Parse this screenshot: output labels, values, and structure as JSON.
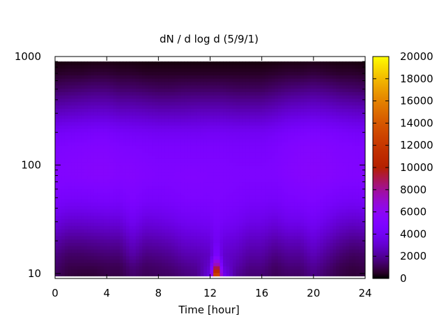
{
  "chart_data": {
    "type": "heatmap",
    "title": "dN / d log d (5/9/1)",
    "xlabel": "Time [hour]",
    "ylabel": "",
    "x_range": [
      0,
      24
    ],
    "x_ticks": [
      0,
      4,
      8,
      12,
      16,
      20,
      24
    ],
    "y_scale": "log",
    "y_range": [
      9,
      1000
    ],
    "y_ticks": [
      10,
      100,
      1000
    ],
    "data_y_range": [
      9.5,
      900
    ],
    "colorbar": {
      "range": [
        0,
        20000
      ],
      "ticks": [
        0,
        2000,
        4000,
        6000,
        8000,
        10000,
        12000,
        14000,
        16000,
        18000,
        20000
      ],
      "palette": "gnuplot (black-purple-blue-red-orange-yellow)"
    },
    "x_hours": [
      0,
      1,
      2,
      3,
      4,
      5,
      6,
      7,
      8,
      9,
      10,
      11,
      12,
      12.5,
      13,
      14,
      15,
      16,
      17,
      18,
      19,
      20,
      21,
      22,
      23,
      24
    ],
    "y_diameters": [
      10,
      12,
      15,
      20,
      30,
      50,
      80,
      100,
      150,
      200,
      300,
      500,
      700,
      900
    ],
    "values": [
      [
        1200,
        800,
        700,
        700,
        900,
        900,
        1400,
        1100,
        1200,
        1300,
        1600,
        1800,
        3500,
        15500,
        4000,
        2000,
        1500,
        1500,
        1100,
        1300,
        1300,
        1800,
        1300,
        900,
        700,
        800
      ],
      [
        1400,
        1000,
        1000,
        1000,
        1100,
        1100,
        1700,
        1300,
        1400,
        1600,
        1900,
        2100,
        3000,
        9000,
        3200,
        2400,
        1800,
        1800,
        1300,
        1600,
        1600,
        2100,
        1600,
        1100,
        900,
        1000
      ],
      [
        1700,
        1300,
        1300,
        1400,
        1500,
        1500,
        2300,
        1700,
        1800,
        2000,
        2400,
        2500,
        2800,
        5000,
        3000,
        2700,
        2200,
        2200,
        1700,
        2000,
        2000,
        2600,
        2000,
        1500,
        1200,
        1300
      ],
      [
        2300,
        1900,
        1900,
        2000,
        2100,
        2100,
        2900,
        2300,
        2400,
        2600,
        3000,
        3100,
        3300,
        4200,
        3400,
        3200,
        2700,
        2700,
        2300,
        2600,
        2600,
        3200,
        2600,
        2100,
        1800,
        1900
      ],
      [
        3400,
        3000,
        3000,
        3100,
        3200,
        3200,
        3900,
        3300,
        3400,
        3600,
        3900,
        4000,
        4100,
        4500,
        4200,
        4000,
        3600,
        3600,
        3300,
        3700,
        3700,
        4100,
        3600,
        3100,
        2900,
        3000
      ],
      [
        4600,
        4400,
        4400,
        4500,
        4600,
        4500,
        4900,
        4500,
        4500,
        4600,
        4800,
        4800,
        4800,
        4900,
        4800,
        4700,
        4500,
        4500,
        4400,
        4700,
        4800,
        5000,
        4700,
        4400,
        4300,
        4400
      ],
      [
        5200,
        5200,
        5300,
        5400,
        5400,
        5200,
        5300,
        5100,
        5000,
        5000,
        5100,
        5100,
        5000,
        5000,
        5000,
        4900,
        4900,
        4900,
        4900,
        5200,
        5400,
        5500,
        5400,
        5200,
        5100,
        5100
      ],
      [
        5100,
        5200,
        5300,
        5400,
        5400,
        5200,
        5200,
        5000,
        4900,
        4900,
        4900,
        4900,
        4900,
        4900,
        4900,
        4800,
        4800,
        4800,
        4900,
        5200,
        5400,
        5500,
        5400,
        5200,
        5100,
        5000
      ],
      [
        4800,
        4900,
        5000,
        5100,
        5100,
        4900,
        4800,
        4700,
        4600,
        4600,
        4600,
        4600,
        4600,
        4600,
        4600,
        4500,
        4500,
        4500,
        4700,
        5000,
        5200,
        5300,
        5200,
        5000,
        4900,
        4800
      ],
      [
        4200,
        4300,
        4400,
        4500,
        4500,
        4300,
        4200,
        4100,
        4000,
        4000,
        4000,
        4000,
        4100,
        4100,
        4100,
        4000,
        4000,
        4000,
        4200,
        4500,
        4700,
        4800,
        4700,
        4500,
        4300,
        4200
      ],
      [
        2800,
        2900,
        3000,
        3100,
        3100,
        2900,
        2900,
        2800,
        2700,
        2700,
        2700,
        2800,
        2800,
        2800,
        2800,
        2700,
        2700,
        2700,
        2900,
        3200,
        3300,
        3400,
        3300,
        3100,
        3000,
        2900
      ],
      [
        1300,
        1400,
        1500,
        1600,
        1600,
        1400,
        1400,
        1300,
        1200,
        1200,
        1300,
        1300,
        1300,
        1300,
        1300,
        1200,
        1200,
        1200,
        1400,
        1600,
        1700,
        1800,
        1700,
        1500,
        1400,
        1300
      ],
      [
        500,
        600,
        600,
        700,
        700,
        600,
        600,
        500,
        500,
        500,
        500,
        500,
        500,
        500,
        500,
        500,
        500,
        500,
        600,
        700,
        700,
        800,
        700,
        600,
        600,
        500
      ],
      [
        150,
        200,
        200,
        250,
        250,
        200,
        200,
        150,
        150,
        150,
        150,
        150,
        150,
        150,
        150,
        150,
        150,
        150,
        200,
        250,
        250,
        300,
        250,
        200,
        200,
        150
      ]
    ],
    "grid": false,
    "legend": "colorbar right"
  }
}
